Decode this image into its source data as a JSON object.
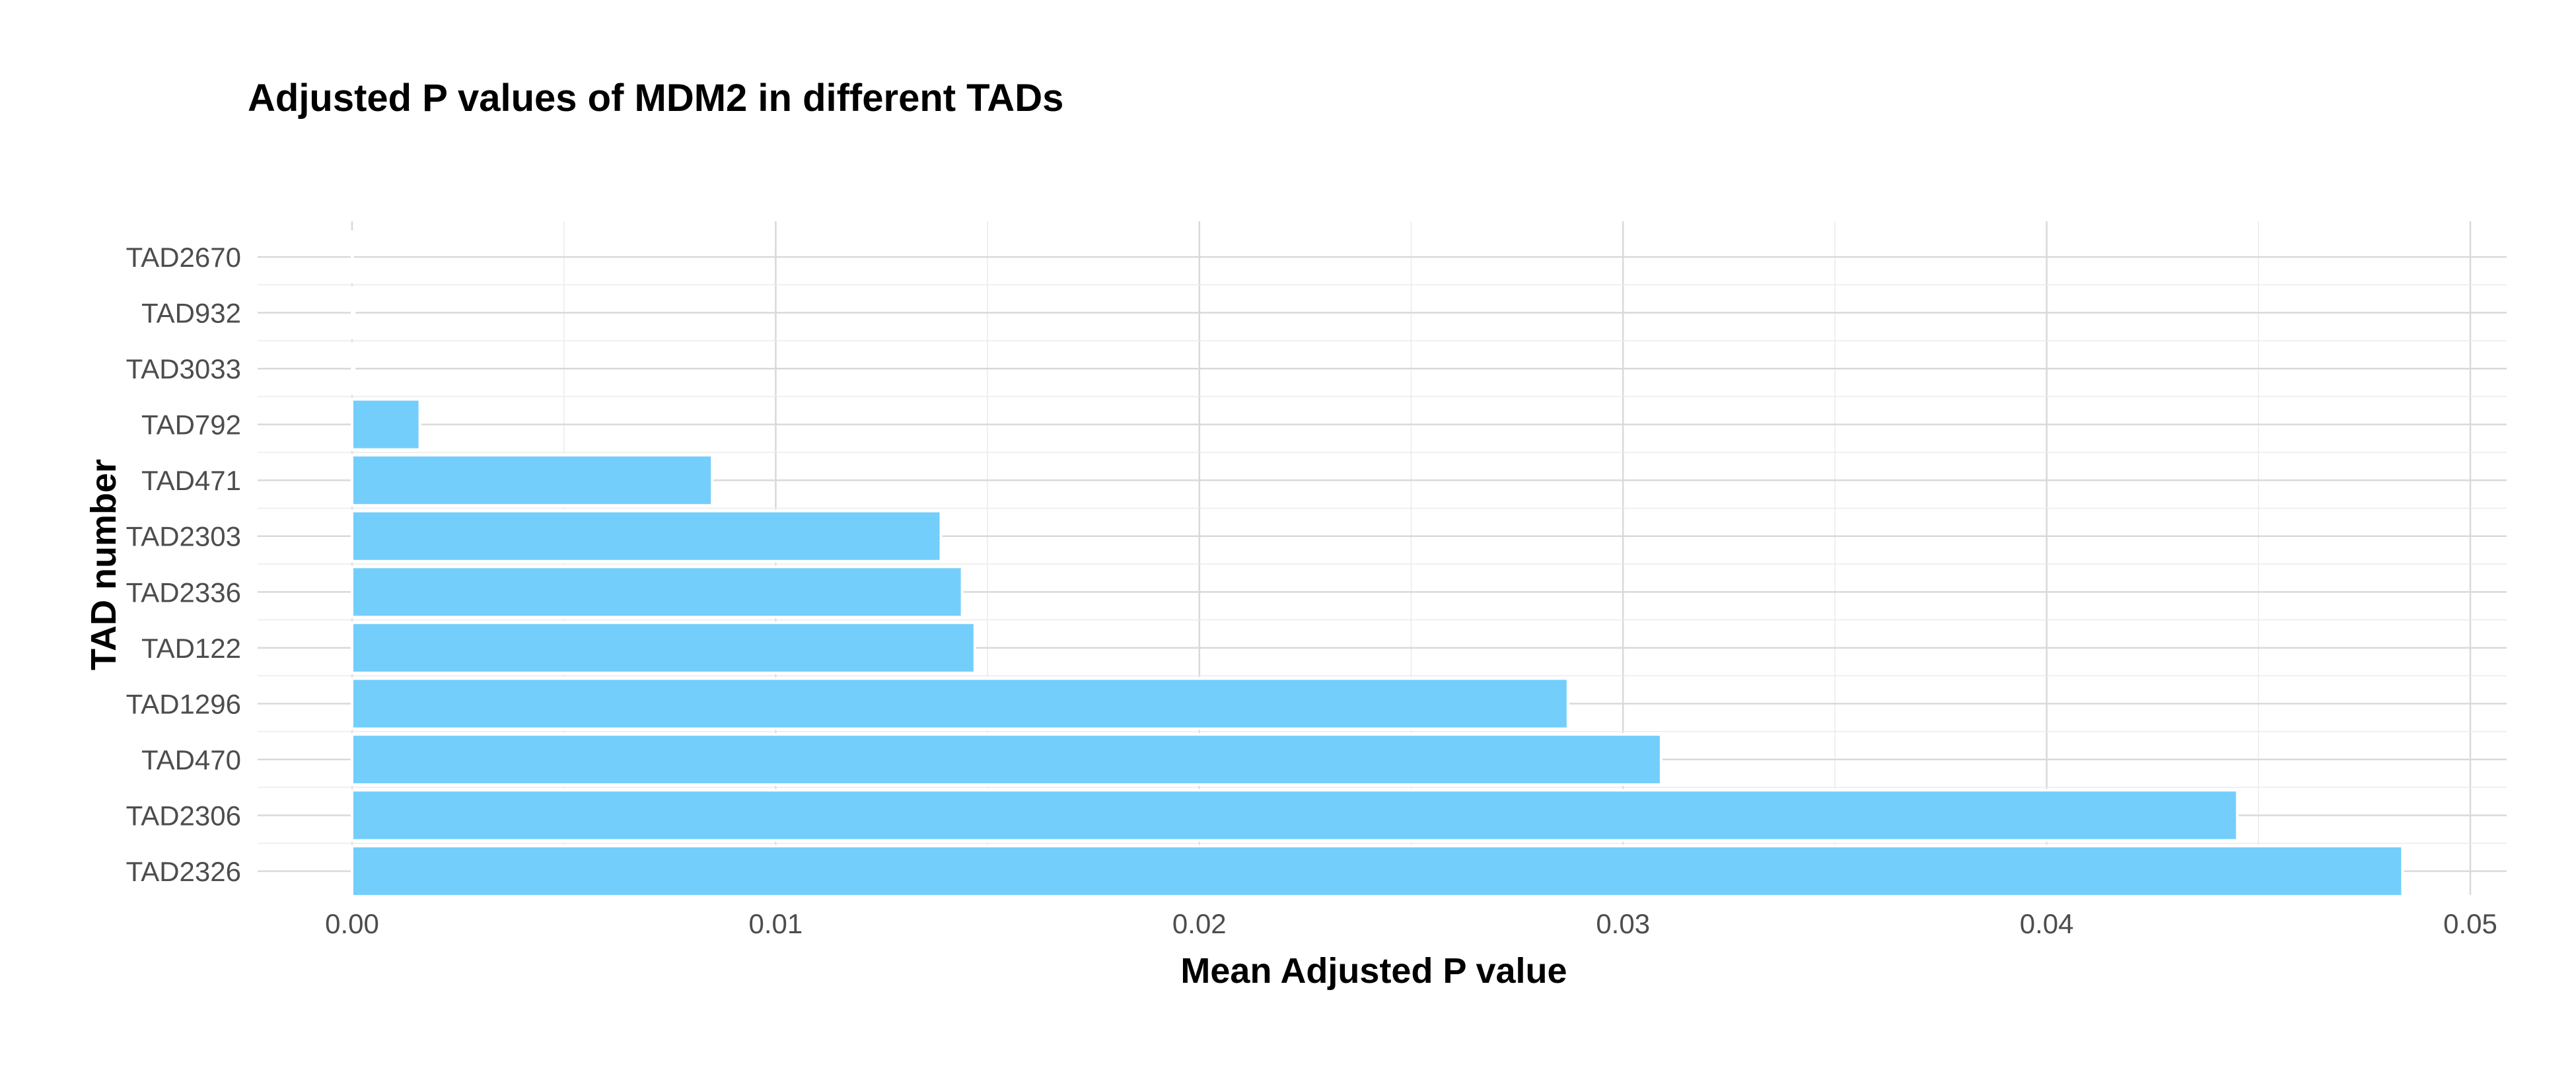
{
  "chart_data": {
    "type": "bar",
    "orientation": "horizontal",
    "title": "Adjusted P values of MDM2 in different TADs",
    "xlabel": "Mean Adjusted P value",
    "ylabel": "TAD number",
    "categories": [
      "TAD2670",
      "TAD932",
      "TAD3033",
      "TAD792",
      "TAD471",
      "TAD2303",
      "TAD2336",
      "TAD122",
      "TAD1296",
      "TAD470",
      "TAD2306",
      "TAD2326"
    ],
    "values": [
      1e-05,
      5e-05,
      5e-05,
      0.0016,
      0.0085,
      0.0139,
      0.0144,
      0.0147,
      0.0287,
      0.0309,
      0.0445,
      0.0484
    ],
    "xlim": [
      0,
      0.05
    ],
    "xticks": [
      0,
      0.01,
      0.02,
      0.03,
      0.04,
      0.05
    ],
    "xtick_labels": [
      "0.00",
      "0.01",
      "0.02",
      "0.03",
      "0.04",
      "0.05"
    ],
    "grid": true,
    "bar_color": "#74cefb"
  }
}
